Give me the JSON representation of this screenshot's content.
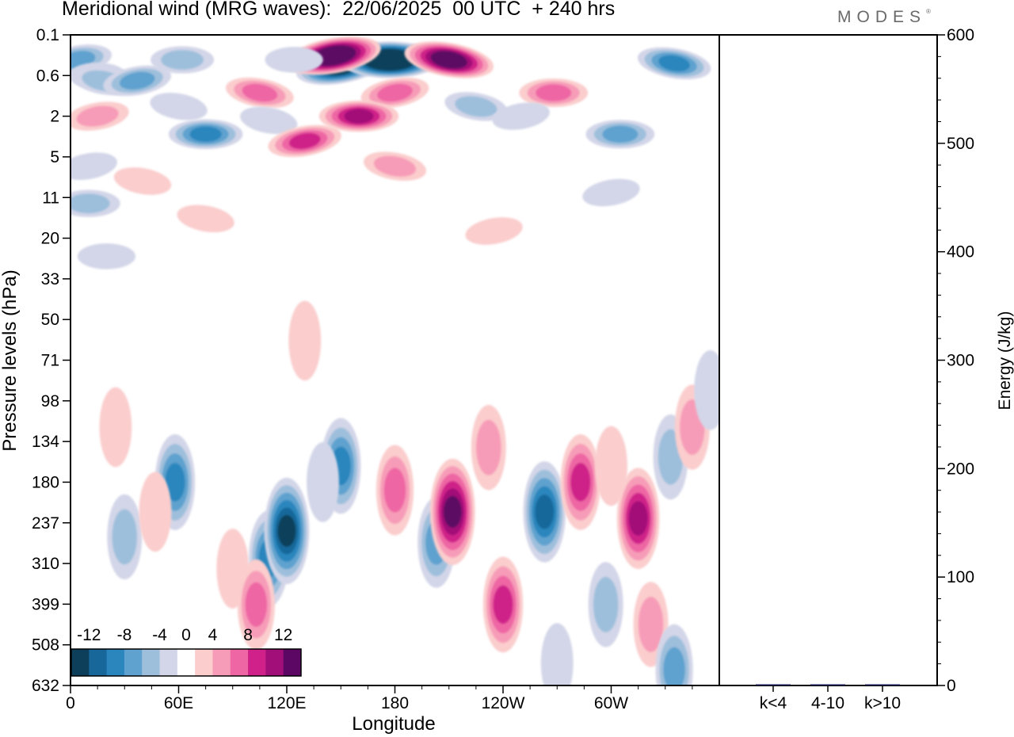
{
  "title": "Meridional wind (MRG waves):  22/06/2025  00 UTC  + 240 hrs",
  "logo": "MODES",
  "chart_data": [
    {
      "type": "heatmap",
      "xlabel": "Longitude",
      "ylabel": "Pressure levels (hPa)",
      "x_ticks": [
        "0",
        "60E",
        "120E",
        "180",
        "120W",
        "60W"
      ],
      "y_ticks": [
        "0.1",
        "0.6",
        "2",
        "5",
        "11",
        "20",
        "33",
        "50",
        "71",
        "98",
        "134",
        "180",
        "237",
        "310",
        "399",
        "508",
        "632"
      ],
      "colorbar": {
        "labels": [
          "-12",
          "-8",
          "-4",
          "0",
          "4",
          "8",
          "12"
        ],
        "levels": [
          -14,
          -12,
          -10,
          -8,
          -6,
          -4,
          -2,
          2,
          4,
          6,
          8,
          10,
          12,
          14
        ],
        "colors": [
          "#0d3f5a",
          "#17679a",
          "#2b86bd",
          "#5fa2cf",
          "#9ebfdc",
          "#d3d6e8",
          "#ffffff",
          "#fbcdcd",
          "#f79cb8",
          "#ee66a4",
          "#cf2189",
          "#a20f78",
          "#5b0763"
        ]
      },
      "features": [
        {
          "lon": 150,
          "lev": 0.4,
          "value": -14
        },
        {
          "lon": 177,
          "lev": 0.3,
          "value": -18
        },
        {
          "lon": 210,
          "lev": 0.3,
          "value": 14
        },
        {
          "lon": 146,
          "lev": 0.25,
          "value": 16
        },
        {
          "lon": 124,
          "lev": 0.3,
          "value": -2
        },
        {
          "lon": 335,
          "lev": 0.35,
          "value": -9
        },
        {
          "lon": 4,
          "lev": 0.3,
          "value": -7
        },
        {
          "lon": 15,
          "lev": 0.6,
          "value": -3
        },
        {
          "lon": 18,
          "lev": 0.7,
          "value": -5
        },
        {
          "lon": 37,
          "lev": 0.7,
          "value": -6
        },
        {
          "lon": 62,
          "lev": 0.3,
          "value": -5
        },
        {
          "lon": 105,
          "lev": 1.0,
          "value": 6
        },
        {
          "lon": 180,
          "lev": 1.0,
          "value": 6
        },
        {
          "lon": 268,
          "lev": 1.0,
          "value": 7
        },
        {
          "lon": 60,
          "lev": 1.5,
          "value": -2
        },
        {
          "lon": 15,
          "lev": 2.0,
          "value": 4
        },
        {
          "lon": 75,
          "lev": 3.0,
          "value": -8
        },
        {
          "lon": 110,
          "lev": 2.2,
          "value": -3
        },
        {
          "lon": 130,
          "lev": 3.5,
          "value": 9
        },
        {
          "lon": 160,
          "lev": 2.0,
          "value": 10
        },
        {
          "lon": 225,
          "lev": 1.5,
          "value": -5
        },
        {
          "lon": 250,
          "lev": 2.0,
          "value": -3
        },
        {
          "lon": 305,
          "lev": 3.0,
          "value": -7
        },
        {
          "lon": 180,
          "lev": 6.0,
          "value": 5
        },
        {
          "lon": 10,
          "lev": 6.0,
          "value": -3
        },
        {
          "lon": 10,
          "lev": 12.0,
          "value": -4
        },
        {
          "lon": 40,
          "lev": 8.0,
          "value": 2
        },
        {
          "lon": 300,
          "lev": 10.0,
          "value": -2
        },
        {
          "lon": 20,
          "lev": 25.0,
          "value": -2
        },
        {
          "lon": 75,
          "lev": 15.0,
          "value": 2
        },
        {
          "lon": 235,
          "lev": 18.0,
          "value": 2
        },
        {
          "lon": 130,
          "lev": 60.0,
          "value": 2
        },
        {
          "lon": 58,
          "lev": 180.0,
          "value": -8
        },
        {
          "lon": 30,
          "lev": 260.0,
          "value": -5
        },
        {
          "lon": 47,
          "lev": 220.0,
          "value": 3
        },
        {
          "lon": 90,
          "lev": 320.0,
          "value": 3
        },
        {
          "lon": 110,
          "lev": 300.0,
          "value": -8
        },
        {
          "lon": 120,
          "lev": 250.0,
          "value": -12
        },
        {
          "lon": 103,
          "lev": 400.0,
          "value": 7
        },
        {
          "lon": 150,
          "lev": 160.0,
          "value": -9
        },
        {
          "lon": 140,
          "lev": 180.0,
          "value": -3
        },
        {
          "lon": 180,
          "lev": 190.0,
          "value": 7
        },
        {
          "lon": 203,
          "lev": 270.0,
          "value": -7
        },
        {
          "lon": 212,
          "lev": 220.0,
          "value": 12
        },
        {
          "lon": 232,
          "lev": 140.0,
          "value": 5
        },
        {
          "lon": 240,
          "lev": 400.0,
          "value": 8
        },
        {
          "lon": 263,
          "lev": 220.0,
          "value": -11
        },
        {
          "lon": 283,
          "lev": 180.0,
          "value": 9
        },
        {
          "lon": 300,
          "lev": 160.0,
          "value": 2
        },
        {
          "lon": 297,
          "lev": 400.0,
          "value": -5
        },
        {
          "lon": 315,
          "lev": 230.0,
          "value": 11
        },
        {
          "lon": 322,
          "lev": 450.0,
          "value": 4
        },
        {
          "lon": 333,
          "lev": 150.0,
          "value": -5
        },
        {
          "lon": 345,
          "lev": 120.0,
          "value": 5
        },
        {
          "lon": 335,
          "lev": 580.0,
          "value": -6
        },
        {
          "lon": 25,
          "lev": 120.0,
          "value": 2
        },
        {
          "lon": 270,
          "lev": 560.0,
          "value": -3
        },
        {
          "lon": 355,
          "lev": 90.0,
          "value": -2
        }
      ]
    },
    {
      "type": "bar",
      "ylabel": "Energy (J/kg)",
      "categories": [
        "k<4",
        "4-10",
        "k>10"
      ],
      "values": [
        0.2,
        0.8,
        0.1
      ],
      "colors": [
        "#1a1a5a",
        "#1a1a5a",
        "#1a1a5a"
      ],
      "ylim": [
        0,
        600
      ],
      "y_ticks": [
        "0",
        "100",
        "200",
        "300",
        "400",
        "500",
        "600"
      ]
    }
  ]
}
